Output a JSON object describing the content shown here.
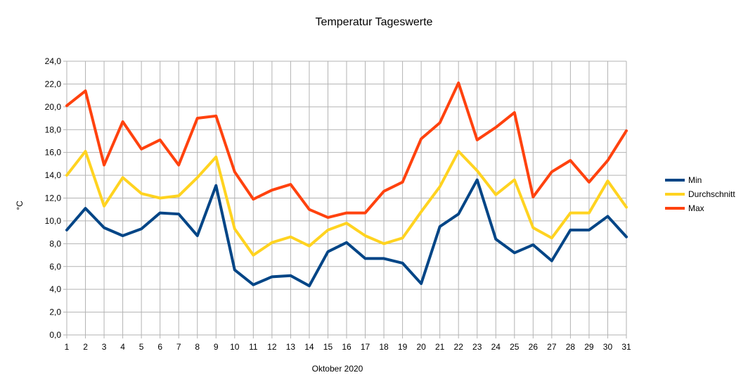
{
  "chart_data": {
    "type": "line",
    "title": "Temperatur Tageswerte",
    "xlabel": "Oktober 2020",
    "ylabel": "°C",
    "ylim": [
      0,
      24
    ],
    "ytick_step": 2,
    "ytick_labels": [
      "0,0",
      "2,0",
      "4,0",
      "6,0",
      "8,0",
      "10,0",
      "12,0",
      "14,0",
      "16,0",
      "18,0",
      "20,0",
      "22,0",
      "24,0"
    ],
    "categories": [
      "1",
      "2",
      "3",
      "4",
      "5",
      "6",
      "7",
      "8",
      "9",
      "10",
      "11",
      "12",
      "13",
      "14",
      "15",
      "16",
      "17",
      "18",
      "19",
      "20",
      "21",
      "22",
      "23",
      "24",
      "25",
      "26",
      "27",
      "28",
      "29",
      "30",
      "31"
    ],
    "grid": true,
    "legend_position": "right",
    "series": [
      {
        "name": "Min",
        "color": "#004586",
        "values": [
          9.2,
          11.1,
          9.4,
          8.7,
          9.3,
          10.7,
          10.6,
          8.7,
          13.1,
          5.7,
          4.4,
          5.1,
          5.2,
          4.3,
          7.3,
          8.1,
          6.7,
          6.7,
          6.3,
          4.5,
          9.5,
          10.6,
          13.6,
          8.4,
          7.2,
          7.9,
          6.5,
          9.2,
          9.2,
          10.4,
          8.6
        ]
      },
      {
        "name": "Durchschnitt",
        "color": "#ffd320",
        "values": [
          14.0,
          16.1,
          11.3,
          13.8,
          12.4,
          12.0,
          12.2,
          13.8,
          15.6,
          9.3,
          7.0,
          8.1,
          8.6,
          7.8,
          9.2,
          9.8,
          8.7,
          8.0,
          8.5,
          10.8,
          13.0,
          16.1,
          14.4,
          12.3,
          13.6,
          9.4,
          8.5,
          10.7,
          10.7,
          13.5,
          11.2
        ]
      },
      {
        "name": "Max",
        "color": "#ff420e",
        "values": [
          20.1,
          21.4,
          14.9,
          18.7,
          16.3,
          17.1,
          14.9,
          19.0,
          19.2,
          14.3,
          11.9,
          12.7,
          13.2,
          11.0,
          10.3,
          10.7,
          10.7,
          12.6,
          13.4,
          17.2,
          18.6,
          22.1,
          17.1,
          18.2,
          19.5,
          12.1,
          14.3,
          15.3,
          13.4,
          15.3,
          17.9
        ]
      }
    ]
  }
}
